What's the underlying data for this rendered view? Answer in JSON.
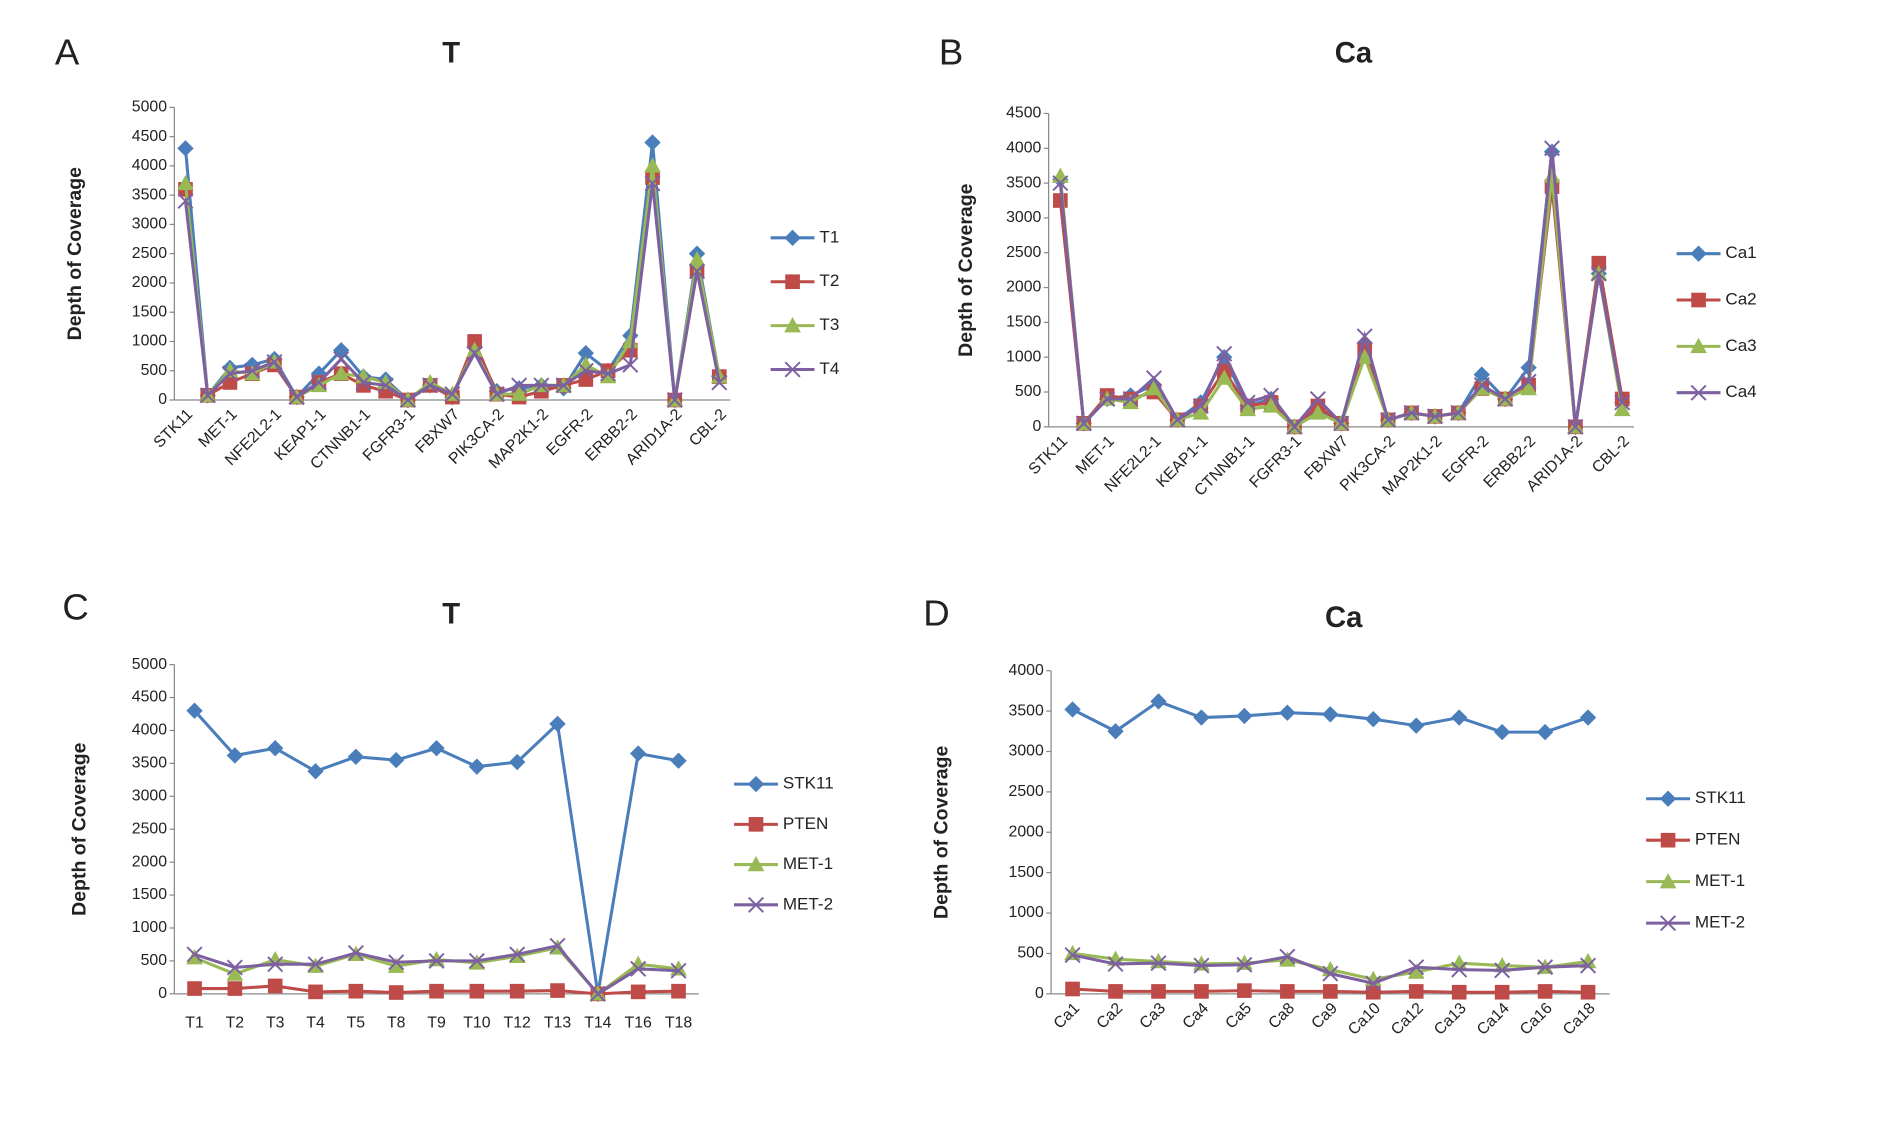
{
  "chart_data": [
    {
      "type": "line",
      "panel": "A",
      "title": "T",
      "y_label": "Depth of Coverage",
      "categories": [
        "STK11",
        null,
        "MET-1",
        null,
        "NFE2L2-1",
        null,
        "KEAP1-1",
        null,
        "CTNNB1-1",
        null,
        "FGFR3-1",
        null,
        "FBXW7",
        null,
        "PIK3CA-2",
        null,
        "MAP2K1-2",
        null,
        "EGFR-2",
        null,
        "ERBB2-2",
        null,
        "ARID1A-2",
        null,
        "CBL-2"
      ],
      "ylim": [
        0,
        5000
      ],
      "yticks": [
        0,
        500,
        1000,
        1500,
        2000,
        2500,
        3000,
        3500,
        4000,
        4500,
        5000
      ],
      "grid": false,
      "legend": "right",
      "series": [
        {
          "name": "T1",
          "color": "#4a7ebb",
          "marker": "diamond",
          "values": [
            4300,
            80,
            550,
            600,
            700,
            50,
            450,
            850,
            400,
            350,
            0,
            250,
            50,
            900,
            150,
            200,
            250,
            200,
            800,
            500,
            1100,
            4400,
            0,
            2500,
            400
          ]
        },
        {
          "name": "T2",
          "color": "#be4b48",
          "marker": "square",
          "values": [
            3600,
            80,
            300,
            450,
            600,
            50,
            300,
            450,
            250,
            150,
            0,
            250,
            50,
            1000,
            100,
            50,
            150,
            250,
            350,
            500,
            850,
            3800,
            0,
            2200,
            400
          ]
        },
        {
          "name": "T3",
          "color": "#98b954",
          "marker": "triangle",
          "values": [
            3700,
            80,
            500,
            450,
            650,
            50,
            250,
            450,
            400,
            300,
            0,
            300,
            100,
            850,
            100,
            100,
            250,
            250,
            600,
            400,
            1000,
            4000,
            0,
            2400,
            400
          ]
        },
        {
          "name": "T4",
          "color": "#7d60a0",
          "marker": "x",
          "values": [
            3400,
            80,
            450,
            500,
            650,
            50,
            300,
            700,
            300,
            250,
            0,
            250,
            100,
            800,
            100,
            250,
            250,
            250,
            500,
            450,
            600,
            3700,
            0,
            2200,
            300
          ]
        }
      ]
    },
    {
      "type": "line",
      "panel": "B",
      "title": "Ca",
      "y_label": "Depth of Coverage",
      "categories": [
        "STK11",
        null,
        "MET-1",
        null,
        "NFE2L2-1",
        null,
        "KEAP1-1",
        null,
        "CTNNB1-1",
        null,
        "FGFR3-1",
        null,
        "FBXW7",
        null,
        "PIK3CA-2",
        null,
        "MAP2K1-2",
        null,
        "EGFR-2",
        null,
        "ERBB2-2",
        null,
        "ARID1A-2",
        null,
        "CBL-2"
      ],
      "ylim": [
        0,
        4500
      ],
      "yticks": [
        0,
        500,
        1000,
        1500,
        2000,
        2500,
        3000,
        3500,
        4000,
        4500
      ],
      "grid": false,
      "legend": "right",
      "series": [
        {
          "name": "Ca1",
          "color": "#4a7ebb",
          "marker": "diamond",
          "values": [
            3550,
            50,
            400,
            450,
            600,
            100,
            350,
            1000,
            300,
            400,
            0,
            250,
            50,
            1200,
            100,
            200,
            150,
            200,
            750,
            400,
            850,
            3950,
            0,
            2200,
            350
          ]
        },
        {
          "name": "Ca2",
          "color": "#be4b48",
          "marker": "square",
          "values": [
            3250,
            50,
            450,
            400,
            500,
            100,
            300,
            800,
            300,
            350,
            0,
            300,
            50,
            1100,
            100,
            200,
            150,
            200,
            550,
            400,
            600,
            3450,
            0,
            2350,
            400
          ]
        },
        {
          "name": "Ca3",
          "color": "#98b954",
          "marker": "triangle",
          "values": [
            3600,
            50,
            400,
            350,
            550,
            100,
            200,
            700,
            250,
            300,
            0,
            200,
            50,
            1000,
            100,
            200,
            150,
            200,
            550,
            400,
            550,
            3600,
            0,
            2200,
            250
          ]
        },
        {
          "name": "Ca4",
          "color": "#7d60a0",
          "marker": "x",
          "values": [
            3500,
            50,
            400,
            400,
            700,
            100,
            300,
            1050,
            350,
            450,
            0,
            400,
            50,
            1300,
            100,
            200,
            150,
            200,
            600,
            400,
            650,
            4000,
            0,
            2200,
            350
          ]
        }
      ]
    },
    {
      "type": "line",
      "panel": "C",
      "title": "T",
      "y_label": "Depth of Coverage",
      "categories": [
        "T1",
        "T2",
        "T3",
        "T4",
        "T5",
        "T8",
        "T9",
        "T10",
        "T12",
        "T13",
        "T14",
        "T16",
        "T18"
      ],
      "ylim": [
        0,
        5000
      ],
      "yticks": [
        0,
        500,
        1000,
        1500,
        2000,
        2500,
        3000,
        3500,
        4000,
        4500,
        5000
      ],
      "grid": false,
      "legend": "right",
      "series": [
        {
          "name": "STK11",
          "color": "#4a7ebb",
          "marker": "diamond",
          "values": [
            4300,
            3620,
            3730,
            3380,
            3600,
            3550,
            3730,
            3450,
            3520,
            4100,
            0,
            3650,
            3540
          ]
        },
        {
          "name": "PTEN",
          "color": "#be4b48",
          "marker": "square",
          "values": [
            80,
            80,
            120,
            30,
            40,
            20,
            40,
            40,
            40,
            50,
            0,
            30,
            40
          ]
        },
        {
          "name": "MET-1",
          "color": "#98b954",
          "marker": "triangle",
          "values": [
            550,
            300,
            520,
            420,
            600,
            420,
            520,
            470,
            570,
            700,
            0,
            450,
            380
          ]
        },
        {
          "name": "MET-2",
          "color": "#7d60a0",
          "marker": "x",
          "values": [
            600,
            400,
            450,
            450,
            620,
            480,
            500,
            500,
            600,
            730,
            0,
            380,
            350
          ]
        }
      ]
    },
    {
      "type": "line",
      "panel": "D",
      "title": "Ca",
      "y_label": "Depth of Coverage",
      "categories": [
        "Ca1",
        "Ca2",
        "Ca3",
        "Ca4",
        "Ca5",
        "Ca8",
        "Ca9",
        "Ca10",
        "Ca12",
        "Ca13",
        "Ca14",
        "Ca16",
        "Ca18"
      ],
      "ylim": [
        0,
        4000
      ],
      "yticks": [
        0,
        500,
        1000,
        1500,
        2000,
        2500,
        3000,
        3500,
        4000
      ],
      "grid": false,
      "legend": "right",
      "series": [
        {
          "name": "STK11",
          "color": "#4a7ebb",
          "marker": "diamond",
          "values": [
            3520,
            3250,
            3620,
            3420,
            3440,
            3480,
            3460,
            3400,
            3320,
            3420,
            3240,
            3240,
            3420
          ]
        },
        {
          "name": "PTEN",
          "color": "#be4b48",
          "marker": "square",
          "values": [
            60,
            30,
            30,
            30,
            40,
            30,
            30,
            20,
            30,
            20,
            20,
            30,
            20
          ]
        },
        {
          "name": "MET-1",
          "color": "#98b954",
          "marker": "triangle",
          "values": [
            500,
            430,
            400,
            370,
            380,
            420,
            300,
            180,
            270,
            380,
            350,
            330,
            400
          ]
        },
        {
          "name": "MET-2",
          "color": "#7d60a0",
          "marker": "x",
          "values": [
            480,
            370,
            380,
            350,
            360,
            460,
            250,
            130,
            330,
            300,
            290,
            330,
            350
          ]
        }
      ]
    }
  ]
}
